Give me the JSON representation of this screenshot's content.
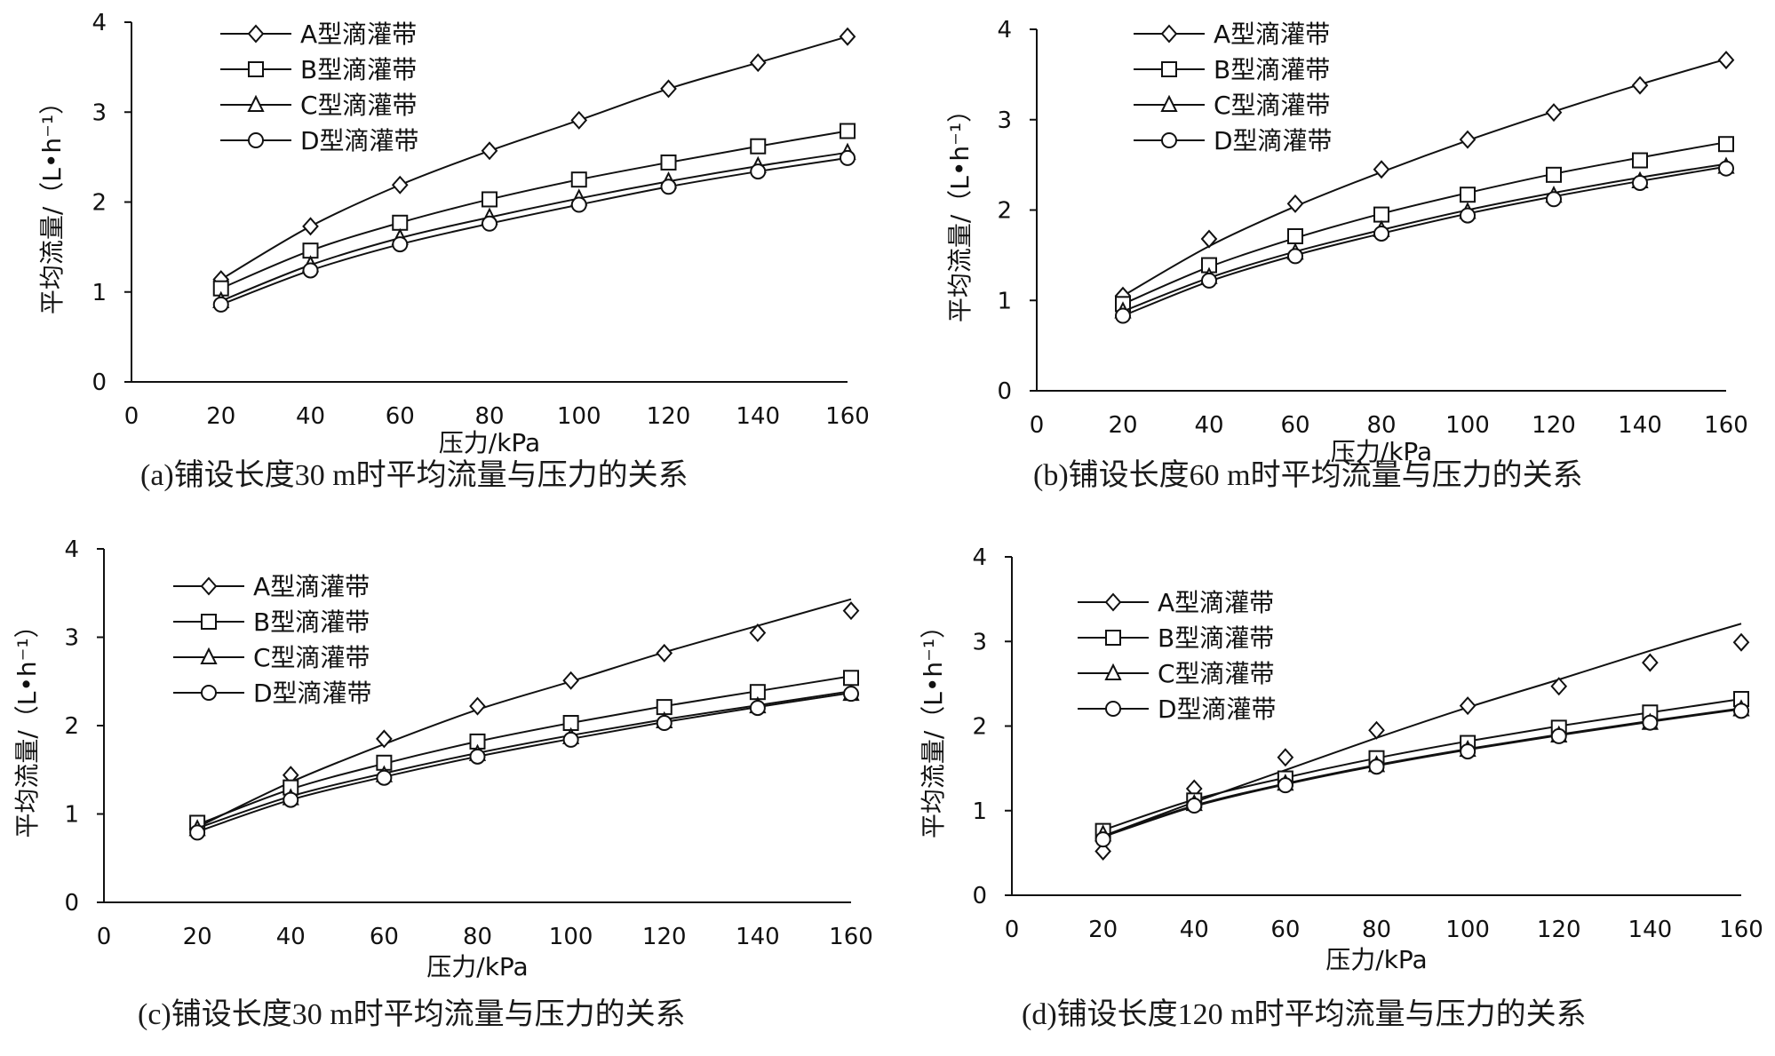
{
  "chart_data": [
    {
      "type": "line",
      "caption": "(a)铺设长度30 m时平均流量与压力的关系",
      "xlabel": "压力/kPa",
      "ylabel": "平均流量/（L•h⁻¹）",
      "xlim": [
        0,
        160
      ],
      "ylim": [
        0,
        4
      ],
      "x_ticks": [
        0,
        20,
        40,
        60,
        80,
        100,
        120,
        140,
        160
      ],
      "y_ticks": [
        0,
        1,
        2,
        3,
        4
      ],
      "legend_position": "top-left",
      "grid": false,
      "x": [
        20,
        40,
        60,
        80,
        100,
        120,
        140,
        160
      ],
      "series": [
        {
          "name": "A型滴灌带",
          "marker": "diamond",
          "values": [
            1.14,
            1.73,
            2.19,
            2.57,
            2.91,
            3.26,
            3.55,
            3.84
          ],
          "fit": [
            1.14,
            1.73,
            2.19,
            2.57,
            2.91,
            3.26,
            3.55,
            3.84
          ]
        },
        {
          "name": "B型滴灌带",
          "marker": "square",
          "values": [
            1.04,
            1.46,
            1.77,
            2.03,
            2.25,
            2.44,
            2.62,
            2.79
          ],
          "fit": [
            1.04,
            1.46,
            1.77,
            2.03,
            2.25,
            2.44,
            2.62,
            2.79
          ]
        },
        {
          "name": "C型滴灌带",
          "marker": "triangle",
          "values": [
            0.9,
            1.3,
            1.6,
            1.83,
            2.04,
            2.23,
            2.4,
            2.55
          ],
          "fit": [
            0.9,
            1.3,
            1.6,
            1.83,
            2.04,
            2.23,
            2.4,
            2.55
          ]
        },
        {
          "name": "D型滴灌带",
          "marker": "circle",
          "values": [
            0.86,
            1.24,
            1.53,
            1.76,
            1.97,
            2.17,
            2.34,
            2.49
          ],
          "fit": [
            0.86,
            1.24,
            1.53,
            1.76,
            1.97,
            2.17,
            2.34,
            2.49
          ]
        }
      ]
    },
    {
      "type": "line",
      "caption": "(b)铺设长度60 m时平均流量与压力的关系",
      "xlabel": "压力/kPa",
      "ylabel": "平均流量/（L•h⁻¹）",
      "xlim": [
        0,
        160
      ],
      "ylim": [
        0,
        4
      ],
      "x_ticks": [
        0,
        20,
        40,
        60,
        80,
        100,
        120,
        140,
        160
      ],
      "y_ticks": [
        0,
        1,
        2,
        3,
        4
      ],
      "legend_position": "top-left",
      "grid": false,
      "x": [
        20,
        40,
        60,
        80,
        100,
        120,
        140,
        160
      ],
      "series": [
        {
          "name": "A型滴灌带",
          "marker": "diamond",
          "values": [
            1.05,
            1.68,
            2.07,
            2.45,
            2.78,
            3.08,
            3.38,
            3.66
          ],
          "fit": [
            1.05,
            1.6,
            2.04,
            2.42,
            2.77,
            3.09,
            3.39,
            3.67
          ]
        },
        {
          "name": "B型滴灌带",
          "marker": "square",
          "values": [
            0.96,
            1.39,
            1.71,
            1.95,
            2.17,
            2.39,
            2.55,
            2.73
          ],
          "fit": [
            0.96,
            1.37,
            1.69,
            1.96,
            2.19,
            2.4,
            2.58,
            2.75
          ]
        },
        {
          "name": "C型滴灌带",
          "marker": "triangle",
          "values": [
            0.88,
            1.26,
            1.53,
            1.78,
            1.98,
            2.16,
            2.32,
            2.48
          ],
          "fit": [
            0.88,
            1.25,
            1.54,
            1.78,
            2.0,
            2.19,
            2.36,
            2.51
          ]
        },
        {
          "name": "D型滴灌带",
          "marker": "circle",
          "values": [
            0.83,
            1.22,
            1.49,
            1.74,
            1.94,
            2.12,
            2.3,
            2.46
          ],
          "fit": [
            0.83,
            1.21,
            1.5,
            1.74,
            1.96,
            2.15,
            2.32,
            2.48
          ]
        }
      ]
    },
    {
      "type": "line",
      "caption": "(c)铺设长度30 m时平均流量与压力的关系",
      "xlabel": "压力/kPa",
      "ylabel": "平均流量/（L•h⁻¹）",
      "xlim": [
        0,
        160
      ],
      "ylim": [
        0,
        4
      ],
      "x_ticks": [
        0,
        20,
        40,
        60,
        80,
        100,
        120,
        140,
        160
      ],
      "y_ticks": [
        0,
        1,
        2,
        3,
        4
      ],
      "legend_position": "top-left",
      "grid": false,
      "x": [
        20,
        40,
        60,
        80,
        100,
        120,
        140,
        160
      ],
      "series": [
        {
          "name": "A型滴灌带",
          "marker": "diamond",
          "values": [
            0.83,
            1.44,
            1.85,
            2.22,
            2.51,
            2.82,
            3.05,
            3.3
          ],
          "fit": [
            0.85,
            1.36,
            1.79,
            2.18,
            2.5,
            2.83,
            3.13,
            3.43
          ]
        },
        {
          "name": "B型滴灌带",
          "marker": "square",
          "values": [
            0.9,
            1.3,
            1.58,
            1.82,
            2.03,
            2.21,
            2.38,
            2.54
          ],
          "fit": [
            0.88,
            1.28,
            1.57,
            1.82,
            2.03,
            2.22,
            2.39,
            2.56
          ]
        },
        {
          "name": "C型滴灌带",
          "marker": "triangle",
          "values": [
            0.83,
            1.18,
            1.44,
            1.68,
            1.87,
            2.05,
            2.22,
            2.36
          ],
          "fit": [
            0.84,
            1.2,
            1.46,
            1.69,
            1.89,
            2.07,
            2.23,
            2.39
          ]
        },
        {
          "name": "D型滴灌带",
          "marker": "circle",
          "values": [
            0.79,
            1.16,
            1.41,
            1.65,
            1.84,
            2.03,
            2.2,
            2.36
          ],
          "fit": [
            0.8,
            1.16,
            1.42,
            1.65,
            1.85,
            2.04,
            2.21,
            2.37
          ]
        }
      ]
    },
    {
      "type": "line",
      "caption": "(d)铺设长度120 m时平均流量与压力的关系",
      "xlabel": "压力/kPa",
      "ylabel": "平均流量/（L•h⁻¹）",
      "xlim": [
        0,
        160
      ],
      "ylim": [
        0,
        4
      ],
      "x_ticks": [
        0,
        20,
        40,
        60,
        80,
        100,
        120,
        140,
        160
      ],
      "y_ticks": [
        0,
        1,
        2,
        3,
        4
      ],
      "legend_position": "top-left",
      "grid": false,
      "x": [
        20,
        40,
        60,
        80,
        100,
        120,
        140,
        160
      ],
      "series": [
        {
          "name": "A型滴灌带",
          "marker": "diamond",
          "values": [
            0.52,
            1.26,
            1.63,
            1.95,
            2.24,
            2.47,
            2.75,
            2.99
          ],
          "fit": [
            0.7,
            1.1,
            1.48,
            1.86,
            2.22,
            2.55,
            2.89,
            3.21
          ]
        },
        {
          "name": "B型滴灌带",
          "marker": "square",
          "values": [
            0.76,
            1.12,
            1.38,
            1.62,
            1.8,
            1.98,
            2.16,
            2.32
          ],
          "fit": [
            0.77,
            1.13,
            1.39,
            1.62,
            1.82,
            2.0,
            2.16,
            2.32
          ]
        },
        {
          "name": "C型滴灌带",
          "marker": "triangle",
          "values": [
            0.72,
            1.08,
            1.32,
            1.54,
            1.72,
            1.89,
            2.04,
            2.2
          ],
          "fit": [
            0.7,
            1.06,
            1.32,
            1.54,
            1.73,
            1.9,
            2.06,
            2.21
          ]
        },
        {
          "name": "D型滴灌带",
          "marker": "circle",
          "values": [
            0.66,
            1.06,
            1.3,
            1.52,
            1.7,
            1.88,
            2.04,
            2.18
          ],
          "fit": [
            0.69,
            1.05,
            1.31,
            1.53,
            1.72,
            1.89,
            2.05,
            2.2
          ]
        }
      ]
    }
  ]
}
